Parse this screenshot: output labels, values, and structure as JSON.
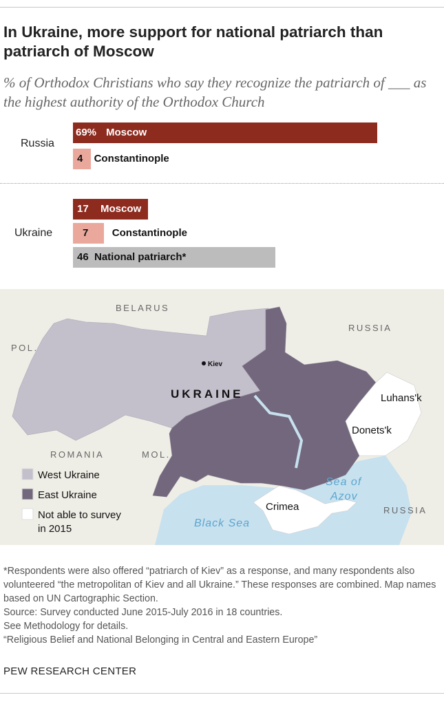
{
  "title": "In Ukraine, more support for national patriarch than patriarch of Moscow",
  "subtitle": "% of Orthodox Christians who say they recognize the patriarch of ___ as the highest authority of the Orthodox Church",
  "colors": {
    "moscow": "#8e2b1f",
    "constantinople": "#eaa89d",
    "national": "#bcbcbc",
    "west_ukraine": "#c3bfcb",
    "east_ukraine": "#72677c",
    "not_surveyed": "#ffffff",
    "water": "#c8e1ef",
    "land": "#efeee6"
  },
  "chart_data": {
    "type": "bar",
    "orientation": "horizontal",
    "groups": [
      {
        "country": "Russia",
        "bars": [
          {
            "category": "Moscow",
            "value": 69,
            "label": "69%"
          },
          {
            "category": "Constantinople",
            "value": 4,
            "label": "4"
          }
        ]
      },
      {
        "country": "Ukraine",
        "bars": [
          {
            "category": "Moscow",
            "value": 17,
            "label": "17"
          },
          {
            "category": "Constantinople",
            "value": 7,
            "label": "7"
          },
          {
            "category": "National patriarch*",
            "value": 46,
            "label": "46"
          }
        ]
      }
    ]
  },
  "map": {
    "labels": {
      "belarus": "BELARUS",
      "russia_n": "RUSSIA",
      "russia_s": "RUSSIA",
      "poland": "POL.",
      "romania": "ROMANIA",
      "moldova": "MOL.",
      "ukraine": "UKRAINE",
      "kiev": "Kiev",
      "luhansk": "Luhans'k",
      "donetsk": "Donets'k",
      "crimea": "Crimea",
      "sea_azov_1": "Sea of",
      "sea_azov_2": "Azov",
      "black_sea": "Black Sea"
    },
    "legend": [
      {
        "label": "West Ukraine",
        "color": "#c3bfcb"
      },
      {
        "label": "East Ukraine",
        "color": "#72677c"
      },
      {
        "label": "Not able to survey",
        "label2": "in 2015",
        "color": "#ffffff"
      }
    ]
  },
  "notes": [
    "*Respondents were also offered “patriarch of Kiev” as a response, and many respondents also volunteered “the metropolitan of Kiev and all Ukraine.” These responses are combined. Map names based on UN Cartographic Section.",
    "Source: Survey conducted June 2015-July 2016 in 18 countries.",
    "See Methodology for details.",
    "“Religious Belief and National Belonging in Central and Eastern Europe”"
  ],
  "brand": "PEW RESEARCH CENTER"
}
